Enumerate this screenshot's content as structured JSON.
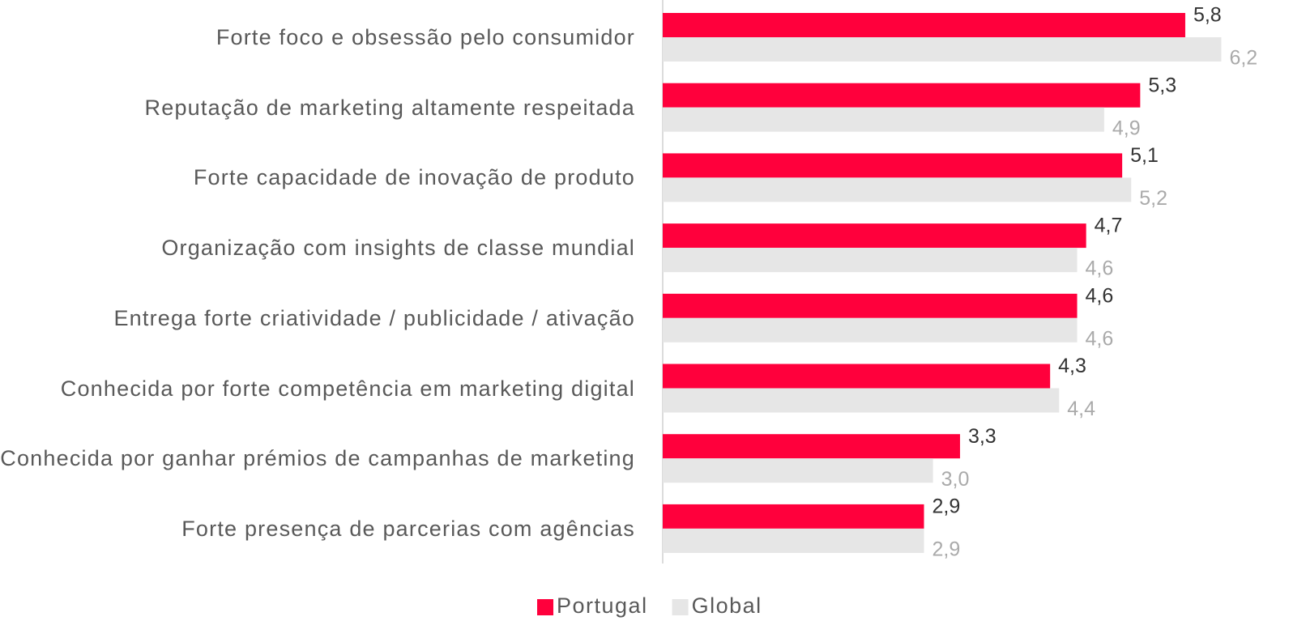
{
  "chart_data": {
    "type": "bar",
    "orientation": "horizontal",
    "categories": [
      "Forte foco e obsessão pelo consumidor",
      "Reputação de marketing altamente respeitada",
      "Forte capacidade de inovação de produto",
      "Organização com insights de classe mundial",
      "Entrega forte criatividade / publicidade / ativação",
      "Conhecida por forte competência em marketing digital",
      "Conhecida por ganhar prémios de campanhas de marketing",
      "Forte presença de parcerias com agências"
    ],
    "series": [
      {
        "name": "Portugal",
        "color": "#ff003c",
        "values": [
          5.8,
          5.3,
          5.1,
          4.7,
          4.6,
          4.3,
          3.3,
          2.9
        ],
        "value_labels": [
          "5,8",
          "5,3",
          "5,1",
          "4,7",
          "4,6",
          "4,3",
          "3,3",
          "2,9"
        ]
      },
      {
        "name": "Global",
        "color": "#e6e6e6",
        "values": [
          6.2,
          4.9,
          5.2,
          4.6,
          4.6,
          4.4,
          3.0,
          2.9
        ],
        "value_labels": [
          "6,2",
          "4,9",
          "5,2",
          "4,6",
          "4,6",
          "4,4",
          "3,0",
          "2,9"
        ]
      }
    ],
    "xlim": [
      0,
      7
    ],
    "legend": "bottom"
  }
}
